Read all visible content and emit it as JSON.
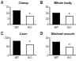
{
  "chart_data": [
    {
      "type": "bar",
      "title": "Clamp",
      "categories": [
        "WT",
        "KO"
      ],
      "values": [
        12,
        7
      ],
      "colors": [
        "#000000",
        "#ffffff"
      ],
      "ylim": [
        0,
        15
      ],
      "yticks": [
        0,
        5,
        10,
        15
      ],
      "annotations": [
        {
          "text": "A"
        },
        {
          "text": "*"
        }
      ]
    },
    {
      "type": "bar",
      "title": "Whole body",
      "categories": [
        "WT",
        "KO"
      ],
      "values": [
        20,
        14
      ],
      "colors": [
        "#000000",
        "#ffffff"
      ],
      "ylim": [
        0,
        30
      ],
      "yticks": [
        0,
        10,
        20,
        30
      ],
      "annotations": [
        {
          "text": "B"
        },
        {
          "text": "*"
        }
      ]
    },
    {
      "type": "bar",
      "title": "Liver",
      "categories": [
        "WT",
        "KO"
      ],
      "values": [
        80,
        60
      ],
      "colors": [
        "#000000",
        "#ffffff"
      ],
      "ylim": [
        0,
        100
      ],
      "yticks": [
        0,
        50,
        100
      ],
      "annotations": [
        {
          "text": "C"
        },
        {
          "text": "*"
        }
      ]
    },
    {
      "type": "bar",
      "title": "Skeletal muscle",
      "categories": [
        "WT",
        "KO"
      ],
      "values": [
        15,
        9
      ],
      "colors": [
        "#000000",
        "#ffffff"
      ],
      "ylim": [
        0,
        20
      ],
      "yticks": [
        0,
        10,
        20
      ],
      "annotations": [
        {
          "text": "D"
        },
        {
          "text": "*"
        }
      ]
    }
  ]
}
